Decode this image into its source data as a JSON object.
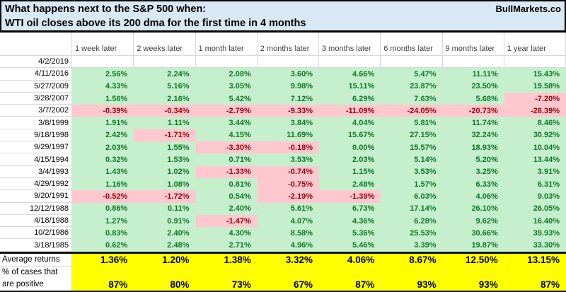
{
  "title": {
    "line1": "What happens next to the S&P 500 when:",
    "line2": "WTI oil closes above its 200 dma for the first time in 4 months",
    "brand": "BullMarkets.co"
  },
  "table": {
    "columns": [
      "1 week later",
      "2 weeks later",
      "1 month later",
      "2 months later",
      "3 months later",
      "6 months later",
      "9 months later",
      "1 year later"
    ],
    "rows": [
      {
        "date": "4/2/2019",
        "values": [
          "",
          "",
          "",
          "",
          "",
          "",
          "",
          ""
        ]
      },
      {
        "date": "4/11/2016",
        "values": [
          "2.56%",
          "2.24%",
          "2.08%",
          "3.60%",
          "4.66%",
          "5.47%",
          "11.11%",
          "15.43%"
        ]
      },
      {
        "date": "5/27/2009",
        "values": [
          "4.33%",
          "5.16%",
          "3.05%",
          "9.98%",
          "15.11%",
          "23.87%",
          "23.50%",
          "19.58%"
        ]
      },
      {
        "date": "3/28/2007",
        "values": [
          "1.56%",
          "2.16%",
          "5.42%",
          "7.12%",
          "6.29%",
          "7.63%",
          "5.68%",
          "-7.20%"
        ]
      },
      {
        "date": "3/7/2002",
        "values": [
          "-0.39%",
          "-0.34%",
          "-2.79%",
          "-9.33%",
          "-11.09%",
          "-24.05%",
          "-20.73%",
          "-28.39%"
        ]
      },
      {
        "date": "3/8/1999",
        "values": [
          "1.91%",
          "1.11%",
          "3.44%",
          "3.84%",
          "4.04%",
          "5.81%",
          "11.74%",
          "8.46%"
        ]
      },
      {
        "date": "9/18/1998",
        "values": [
          "2.42%",
          "-1.71%",
          "4.15%",
          "11.69%",
          "15.67%",
          "27.15%",
          "32.24%",
          "30.92%"
        ]
      },
      {
        "date": "9/29/1997",
        "values": [
          "2.03%",
          "1.55%",
          "-3.30%",
          "-0.18%",
          "0.00%",
          "15.57%",
          "18.93%",
          "10.04%"
        ]
      },
      {
        "date": "4/15/1994",
        "values": [
          "0.32%",
          "1.53%",
          "0.71%",
          "3.53%",
          "2.03%",
          "5.14%",
          "5.20%",
          "13.44%"
        ]
      },
      {
        "date": "3/4/1993",
        "values": [
          "1.43%",
          "1.02%",
          "-1.33%",
          "-0.74%",
          "1.15%",
          "3.53%",
          "3.25%",
          "3.91%"
        ]
      },
      {
        "date": "4/29/1992",
        "values": [
          "1.16%",
          "1.08%",
          "0.81%",
          "-0.75%",
          "2.48%",
          "1.57%",
          "6.33%",
          "6.31%"
        ]
      },
      {
        "date": "9/20/1991",
        "values": [
          "-0.52%",
          "-1.72%",
          "0.54%",
          "-2.19%",
          "-1.39%",
          "6.03%",
          "4.06%",
          "9.03%"
        ]
      },
      {
        "date": "12/12/1988",
        "values": [
          "0.86%",
          "0.11%",
          "2.40%",
          "5.61%",
          "6.73%",
          "17.14%",
          "26.10%",
          "26.05%"
        ]
      },
      {
        "date": "4/18/1988",
        "values": [
          "1.27%",
          "0.91%",
          "-1.47%",
          "4.07%",
          "4.36%",
          "6.28%",
          "9.62%",
          "16.40%"
        ]
      },
      {
        "date": "10/2/1986",
        "values": [
          "0.83%",
          "2.40%",
          "4.30%",
          "8.58%",
          "5.36%",
          "25.53%",
          "30.66%",
          "39.93%"
        ]
      },
      {
        "date": "3/18/1985",
        "values": [
          "0.62%",
          "2.48%",
          "2.71%",
          "4.96%",
          "5.46%",
          "3.39%",
          "19.87%",
          "33.30%"
        ]
      }
    ],
    "summary": {
      "avg_label": "Average returns",
      "avg_values": [
        "1.36%",
        "1.20%",
        "1.38%",
        "3.32%",
        "4.06%",
        "8.67%",
        "12.50%",
        "13.15%"
      ],
      "pos_label_line1": "% of cases that",
      "pos_label_line2": "are positive",
      "pos_values": [
        "87%",
        "80%",
        "73%",
        "67%",
        "87%",
        "93%",
        "93%",
        "87%"
      ]
    }
  },
  "colors": {
    "title_bg": "#d9e8f5",
    "positive_bg": "#c6efce",
    "positive_text": "#0e7a26",
    "negative_bg": "#ffc7ce",
    "negative_text": "#9c0006",
    "summary_bg": "#ffff00",
    "gridline": "#d9d9d9",
    "border": "#000000"
  }
}
